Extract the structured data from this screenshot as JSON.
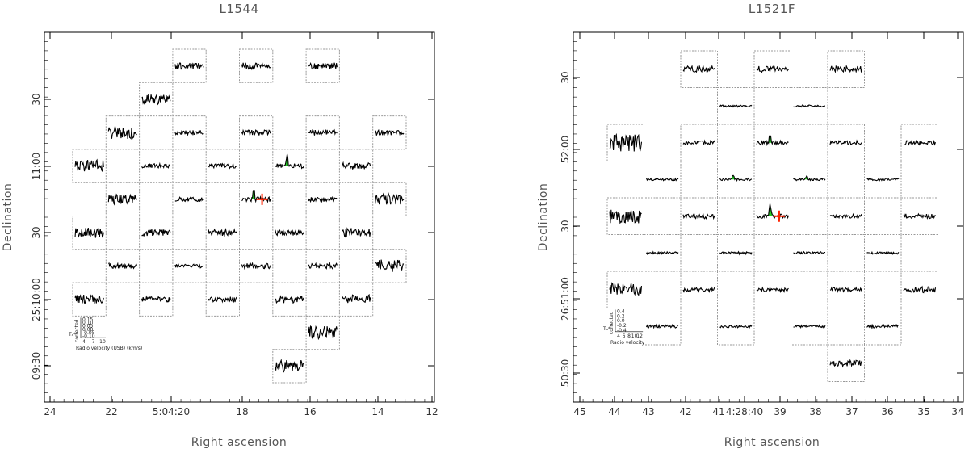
{
  "chart_data": [
    {
      "type": "spectral-map",
      "title": "L1544",
      "xlabel": "Right ascension",
      "ylabel": "Declination",
      "x_ticks": [
        "24",
        "22",
        "5:04:20",
        "18",
        "16",
        "14",
        "12"
      ],
      "y_ticks": [
        "30",
        "11:00",
        "30",
        "25:10:00",
        "09:30"
      ],
      "spectra_grid": {
        "columns": 10,
        "rows": 10,
        "cells": [
          {
            "col": 3,
            "row": 0,
            "noise": 0.35
          },
          {
            "col": 5,
            "row": 0,
            "noise": 0.35
          },
          {
            "col": 7,
            "row": 0,
            "noise": 0.35
          },
          {
            "col": 2,
            "row": 1,
            "noise": 0.55
          },
          {
            "col": 1,
            "row": 2,
            "noise": 0.7
          },
          {
            "col": 3,
            "row": 2,
            "noise": 0.25
          },
          {
            "col": 5,
            "row": 2,
            "noise": 0.3
          },
          {
            "col": 7,
            "row": 2,
            "noise": 0.3
          },
          {
            "col": 9,
            "row": 2,
            "noise": 0.3
          },
          {
            "col": 0,
            "row": 3,
            "noise": 0.65
          },
          {
            "col": 2,
            "row": 3,
            "noise": 0.25
          },
          {
            "col": 4,
            "row": 3,
            "noise": 0.25
          },
          {
            "col": 6,
            "row": 3,
            "noise": 0.25,
            "line": 0.9
          },
          {
            "col": 8,
            "row": 3,
            "noise": 0.35
          },
          {
            "col": 1,
            "row": 4,
            "noise": 0.55
          },
          {
            "col": 3,
            "row": 4,
            "noise": 0.25
          },
          {
            "col": 5,
            "row": 4,
            "noise": 0.25,
            "line": 1.0,
            "marker": true
          },
          {
            "col": 7,
            "row": 4,
            "noise": 0.25
          },
          {
            "col": 9,
            "row": 4,
            "noise": 0.6
          },
          {
            "col": 0,
            "row": 5,
            "noise": 0.55
          },
          {
            "col": 2,
            "row": 5,
            "noise": 0.35
          },
          {
            "col": 4,
            "row": 5,
            "noise": 0.35
          },
          {
            "col": 6,
            "row": 5,
            "noise": 0.35
          },
          {
            "col": 8,
            "row": 5,
            "noise": 0.45
          },
          {
            "col": 1,
            "row": 6,
            "noise": 0.35
          },
          {
            "col": 3,
            "row": 6,
            "noise": 0.2
          },
          {
            "col": 5,
            "row": 6,
            "noise": 0.3
          },
          {
            "col": 7,
            "row": 6,
            "noise": 0.3
          },
          {
            "col": 9,
            "row": 6,
            "noise": 0.7
          },
          {
            "col": 0,
            "row": 7,
            "noise": 0.5,
            "inset": true
          },
          {
            "col": 2,
            "row": 7,
            "noise": 0.3
          },
          {
            "col": 4,
            "row": 7,
            "noise": 0.3
          },
          {
            "col": 6,
            "row": 7,
            "noise": 0.4
          },
          {
            "col": 8,
            "row": 7,
            "noise": 0.5
          },
          {
            "col": 7,
            "row": 8,
            "noise": 0.7
          },
          {
            "col": 6,
            "row": 9,
            "noise": 0.65
          }
        ]
      },
      "inset": {
        "y_label": "corrected",
        "t_label": "Tₐ*",
        "y_ticks": [
          "0.15",
          "0.10",
          "0.05",
          "0.00",
          "-0.05",
          "-0.10"
        ],
        "x_ticks": [
          "4",
          "7",
          "10"
        ],
        "x_label": "Radio velocity (USB) (km/s)"
      },
      "colors": {
        "spectrum": "#000000",
        "emission": "#22cc22",
        "marker": "#ff2200",
        "cell_border": "#999999"
      }
    },
    {
      "type": "spectral-map",
      "title": "L1521F",
      "xlabel": "Right ascension",
      "ylabel": "Declination",
      "x_ticks": [
        "45",
        "44",
        "43",
        "42",
        "41",
        "4:28:40",
        "39",
        "38",
        "37",
        "36",
        "35",
        "34"
      ],
      "y_ticks": [
        "30",
        "52:00",
        "30",
        "26:51:00",
        "50:30"
      ],
      "spectra_grid": {
        "columns": 10,
        "rows": 10,
        "cells": [
          {
            "col": 2,
            "row": 0,
            "noise": 0.3
          },
          {
            "col": 4,
            "row": 0,
            "noise": 0.3
          },
          {
            "col": 6,
            "row": 0,
            "noise": 0.35
          },
          {
            "col": 3,
            "row": 1,
            "noise": 0.12
          },
          {
            "col": 5,
            "row": 1,
            "noise": 0.1
          },
          {
            "col": 0,
            "row": 2,
            "noise": 0.85
          },
          {
            "col": 2,
            "row": 2,
            "noise": 0.2
          },
          {
            "col": 4,
            "row": 2,
            "noise": 0.2,
            "line": 0.7
          },
          {
            "col": 6,
            "row": 2,
            "noise": 0.2
          },
          {
            "col": 8,
            "row": 2,
            "noise": 0.2
          },
          {
            "col": 1,
            "row": 3,
            "noise": 0.12
          },
          {
            "col": 3,
            "row": 3,
            "noise": 0.12,
            "line": 0.35
          },
          {
            "col": 5,
            "row": 3,
            "noise": 0.12,
            "line": 0.3
          },
          {
            "col": 7,
            "row": 3,
            "noise": 0.12
          },
          {
            "col": 0,
            "row": 4,
            "noise": 0.7
          },
          {
            "col": 2,
            "row": 4,
            "noise": 0.25
          },
          {
            "col": 4,
            "row": 4,
            "noise": 0.2,
            "line": 1.0,
            "marker": true
          },
          {
            "col": 6,
            "row": 4,
            "noise": 0.2
          },
          {
            "col": 8,
            "row": 4,
            "noise": 0.25
          },
          {
            "col": 1,
            "row": 5,
            "noise": 0.12
          },
          {
            "col": 3,
            "row": 5,
            "noise": 0.12
          },
          {
            "col": 5,
            "row": 5,
            "noise": 0.12
          },
          {
            "col": 7,
            "row": 5,
            "noise": 0.12
          },
          {
            "col": 0,
            "row": 6,
            "noise": 0.65,
            "inset": true
          },
          {
            "col": 2,
            "row": 6,
            "noise": 0.2
          },
          {
            "col": 4,
            "row": 6,
            "noise": 0.2
          },
          {
            "col": 6,
            "row": 6,
            "noise": 0.2
          },
          {
            "col": 8,
            "row": 6,
            "noise": 0.3
          },
          {
            "col": 1,
            "row": 7,
            "noise": 0.15
          },
          {
            "col": 3,
            "row": 7,
            "noise": 0.12
          },
          {
            "col": 5,
            "row": 7,
            "noise": 0.12
          },
          {
            "col": 7,
            "row": 7,
            "noise": 0.15
          },
          {
            "col": 6,
            "row": 8,
            "noise": 0.3
          }
        ]
      },
      "inset": {
        "y_label": "corrected",
        "t_label": "Tₐ*",
        "y_ticks": [
          "0.4",
          "0.2",
          "0.0",
          "-0.2",
          "-0.4"
        ],
        "x_ticks": [
          "4",
          "6",
          "8",
          "10",
          "12"
        ],
        "x_label": "Radio velocity (USB) (km/s)"
      },
      "colors": {
        "spectrum": "#000000",
        "emission": "#22cc22",
        "marker": "#ff2200",
        "cell_border": "#999999"
      }
    }
  ]
}
